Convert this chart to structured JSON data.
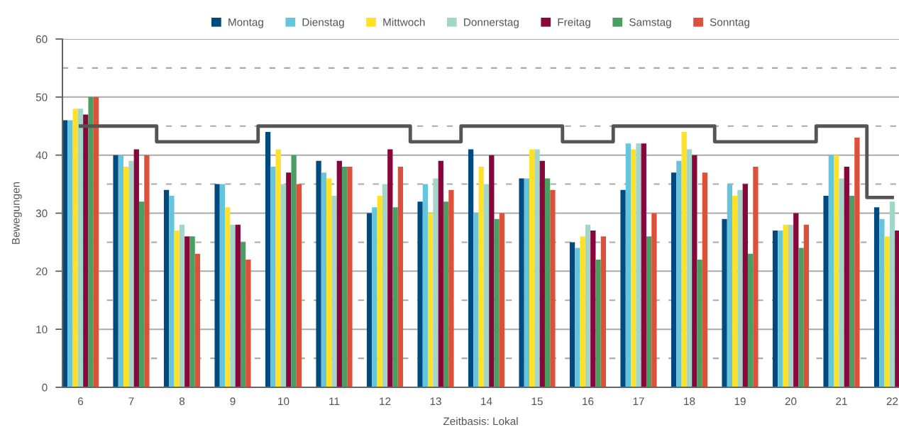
{
  "chart_data": {
    "type": "bar",
    "xlabel": "Zeitbasis: Lokal",
    "ylabel": "Bewegungen",
    "categories": [
      "6",
      "7",
      "8",
      "9",
      "10",
      "11",
      "12",
      "13",
      "14",
      "15",
      "16",
      "17",
      "18",
      "19",
      "20",
      "21",
      "22"
    ],
    "series": [
      {
        "name": "Montag",
        "color": "#004a7f",
        "values": [
          46,
          40,
          34,
          35,
          44,
          39,
          30,
          32,
          41,
          36,
          25,
          34,
          37,
          29,
          27,
          33,
          31
        ]
      },
      {
        "name": "Dienstag",
        "color": "#65c5dc",
        "values": [
          46,
          40,
          33,
          35,
          38,
          37,
          31,
          35,
          30,
          36,
          24,
          42,
          39,
          35,
          27,
          40,
          29
        ]
      },
      {
        "name": "Mittwoch",
        "color": "#ffe228",
        "values": [
          48,
          38,
          27,
          31,
          41,
          36,
          33,
          30,
          38,
          41,
          26,
          41,
          44,
          33,
          28,
          40,
          26
        ]
      },
      {
        "name": "Donnerstag",
        "color": "#a3d5c8",
        "values": [
          48,
          39,
          28,
          28,
          35,
          33,
          35,
          36,
          35,
          41,
          28,
          42,
          41,
          34,
          28,
          36,
          32
        ]
      },
      {
        "name": "Freitag",
        "color": "#87063b",
        "values": [
          47,
          41,
          26,
          28,
          37,
          39,
          41,
          39,
          40,
          39,
          27,
          42,
          40,
          35,
          30,
          38,
          27
        ]
      },
      {
        "name": "Samstag",
        "color": "#4a9e61",
        "values": [
          50,
          32,
          26,
          25,
          40,
          38,
          31,
          32,
          29,
          36,
          22,
          26,
          22,
          23,
          24,
          33,
          null
        ]
      },
      {
        "name": "Sonntag",
        "color": "#dd503a",
        "values": [
          50,
          40,
          23,
          22,
          35,
          38,
          38,
          34,
          30,
          34,
          26,
          30,
          37,
          38,
          28,
          43,
          null
        ]
      },
      {
        "type": "step",
        "color": "#555555",
        "values": [
          45,
          45,
          42.3,
          42.3,
          45,
          45,
          45,
          42.3,
          45,
          45,
          42.3,
          45,
          45,
          42.3,
          42.3,
          45,
          32.7
        ]
      }
    ],
    "ylim": [
      0,
      60
    ],
    "yticks": [
      0,
      10,
      20,
      30,
      40,
      50,
      60
    ],
    "grid": "y",
    "legend": "top",
    "ref_lines": [
      {
        "axis": "y",
        "value": 5,
        "color": "#aaaaaa",
        "line_style": "dashed"
      },
      {
        "axis": "y",
        "value": 15,
        "color": "#aaaaaa",
        "line_style": "dashed"
      },
      {
        "axis": "y",
        "value": 25,
        "color": "#aaaaaa",
        "line_style": "dashed"
      },
      {
        "axis": "y",
        "value": 35,
        "color": "#aaaaaa",
        "line_style": "dashed"
      },
      {
        "axis": "y",
        "value": 45,
        "color": "#aaaaaa",
        "line_style": "dashed"
      },
      {
        "axis": "y",
        "value": 55,
        "color": "#aaaaaa",
        "line_style": "dashed"
      }
    ]
  }
}
